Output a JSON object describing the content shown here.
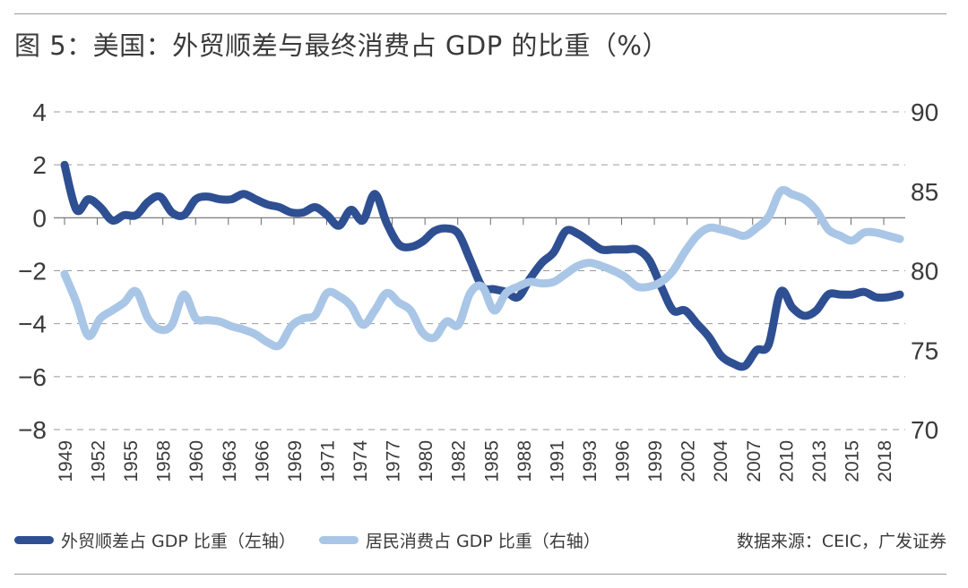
{
  "title": "图 5：美国：外贸顺差与最终消费占 GDP 的比重（%）",
  "source": "数据来源：CEIC，广发证券",
  "colors": {
    "dark": "#2e4f92",
    "light": "#a9c6e6",
    "axis": "#6b6b6b",
    "grid": "#9a9a9a",
    "text": "#3a3a3a"
  },
  "chart_data": {
    "type": "line",
    "title": "图 5：美国：外贸顺差与最终消费占 GDP 的比重（%）",
    "x_tick_labels": [
      "1949",
      "1952",
      "1955",
      "1958",
      "1960",
      "1963",
      "1966",
      "1969",
      "1971",
      "1974",
      "1977",
      "1980",
      "1982",
      "1985",
      "1988",
      "1991",
      "1993",
      "1996",
      "1999",
      "2002",
      "2004",
      "2007",
      "2010",
      "2013",
      "2015",
      "2018"
    ],
    "left_axis": {
      "ylim": [
        -8,
        4
      ],
      "ticks": [
        "4",
        "2",
        "0",
        "−2",
        "−4",
        "−6",
        "−8"
      ],
      "values": [
        4,
        2,
        0,
        -2,
        -4,
        -6,
        -8
      ]
    },
    "right_axis": {
      "ylim": [
        70,
        90
      ],
      "ticks": [
        "90",
        "85",
        "80",
        "75",
        "70"
      ],
      "values": [
        90,
        85,
        80,
        75,
        70
      ]
    },
    "xlim": [
      1949,
      2019
    ],
    "series": [
      {
        "name": "外贸顺差占 GDP 比重（左轴）",
        "axis": "left",
        "color": "#2e4f92",
        "x": [
          1949,
          1950,
          1951,
          1952,
          1953,
          1954,
          1955,
          1956,
          1957,
          1958,
          1959,
          1960,
          1961,
          1962,
          1963,
          1964,
          1965,
          1966,
          1967,
          1968,
          1969,
          1970,
          1971,
          1972,
          1973,
          1974,
          1975,
          1976,
          1977,
          1978,
          1979,
          1980,
          1981,
          1982,
          1983,
          1984,
          1985,
          1986,
          1987,
          1988,
          1989,
          1990,
          1991,
          1992,
          1993,
          1994,
          1995,
          1996,
          1997,
          1998,
          1999,
          2000,
          2001,
          2002,
          2003,
          2004,
          2005,
          2006,
          2007,
          2008,
          2009,
          2010,
          2011,
          2012,
          2013,
          2014,
          2015,
          2016,
          2017,
          2018,
          2019
        ],
        "values": [
          2.0,
          0.3,
          0.7,
          0.4,
          -0.1,
          0.1,
          0.1,
          0.6,
          0.8,
          0.2,
          0.1,
          0.7,
          0.8,
          0.7,
          0.7,
          0.9,
          0.7,
          0.5,
          0.4,
          0.2,
          0.2,
          0.4,
          0.1,
          -0.3,
          0.3,
          -0.1,
          0.9,
          -0.2,
          -1.0,
          -1.1,
          -0.9,
          -0.5,
          -0.4,
          -0.6,
          -1.6,
          -2.6,
          -2.7,
          -2.8,
          -3.0,
          -2.3,
          -1.7,
          -1.3,
          -0.5,
          -0.6,
          -0.9,
          -1.2,
          -1.2,
          -1.2,
          -1.2,
          -1.6,
          -2.6,
          -3.5,
          -3.5,
          -4.0,
          -4.5,
          -5.2,
          -5.5,
          -5.6,
          -5.0,
          -4.8,
          -2.8,
          -3.4,
          -3.7,
          -3.5,
          -2.9,
          -2.9,
          -2.9,
          -2.8,
          -3.0,
          -3.0,
          -2.9
        ]
      },
      {
        "name": "居民消费占 GDP 比重（右轴）",
        "axis": "right",
        "color": "#a9c6e6",
        "x": [
          1949,
          1950,
          1951,
          1952,
          1953,
          1954,
          1955,
          1956,
          1957,
          1958,
          1959,
          1960,
          1961,
          1962,
          1963,
          1964,
          1965,
          1966,
          1967,
          1968,
          1969,
          1970,
          1971,
          1972,
          1973,
          1974,
          1975,
          1976,
          1977,
          1978,
          1979,
          1980,
          1981,
          1982,
          1983,
          1984,
          1985,
          1986,
          1987,
          1988,
          1989,
          1990,
          1991,
          1992,
          1993,
          1994,
          1995,
          1996,
          1997,
          1998,
          1999,
          2000,
          2001,
          2002,
          2003,
          2004,
          2005,
          2006,
          2007,
          2008,
          2009,
          2010,
          2011,
          2012,
          2013,
          2014,
          2015,
          2016,
          2017,
          2018,
          2019
        ],
        "values": [
          79.8,
          78.0,
          75.9,
          77.0,
          77.5,
          78.0,
          78.7,
          77.0,
          76.3,
          76.6,
          78.5,
          77.0,
          76.9,
          76.8,
          76.5,
          76.3,
          76.0,
          75.5,
          75.3,
          76.5,
          77.0,
          77.2,
          78.6,
          78.4,
          77.8,
          76.6,
          77.5,
          78.6,
          78.0,
          77.5,
          76.1,
          75.8,
          76.8,
          76.6,
          78.6,
          79.0,
          77.5,
          78.6,
          79.0,
          79.3,
          79.2,
          79.3,
          79.8,
          80.3,
          80.5,
          80.3,
          80.0,
          79.6,
          79.0,
          79.0,
          79.3,
          80.0,
          81.2,
          82.2,
          82.7,
          82.6,
          82.4,
          82.2,
          82.7,
          83.4,
          85.0,
          84.8,
          84.5,
          83.8,
          82.6,
          82.2,
          81.9,
          82.4,
          82.4,
          82.2,
          82.0
        ]
      }
    ],
    "legend": "bottom-left"
  },
  "legend": [
    {
      "label": "外贸顺差占 GDP 比重（左轴）",
      "color": "#2e4f92"
    },
    {
      "label": "居民消费占 GDP 比重（右轴）",
      "color": "#a9c6e6"
    }
  ]
}
